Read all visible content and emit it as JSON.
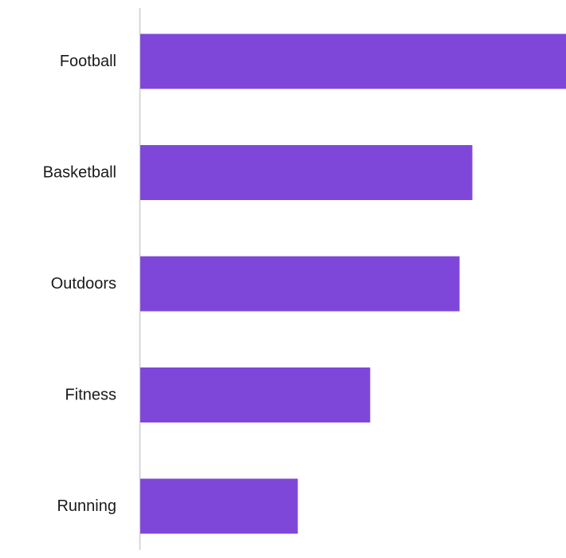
{
  "chart_data": {
    "type": "bar",
    "orientation": "horizontal",
    "categories": [
      "Football",
      "Basketball",
      "Outdoors",
      "Fitness",
      "Running"
    ],
    "values": [
      100,
      78,
      75,
      54,
      37
    ],
    "xlim": [
      0,
      100
    ],
    "grid": false,
    "legend": "none",
    "title": "",
    "xlabel": "",
    "ylabel": "",
    "colors": {
      "bar": "#7f47d9",
      "axis": "#cccccc",
      "label": "#1a1a1a",
      "background": "#ffffff"
    }
  }
}
